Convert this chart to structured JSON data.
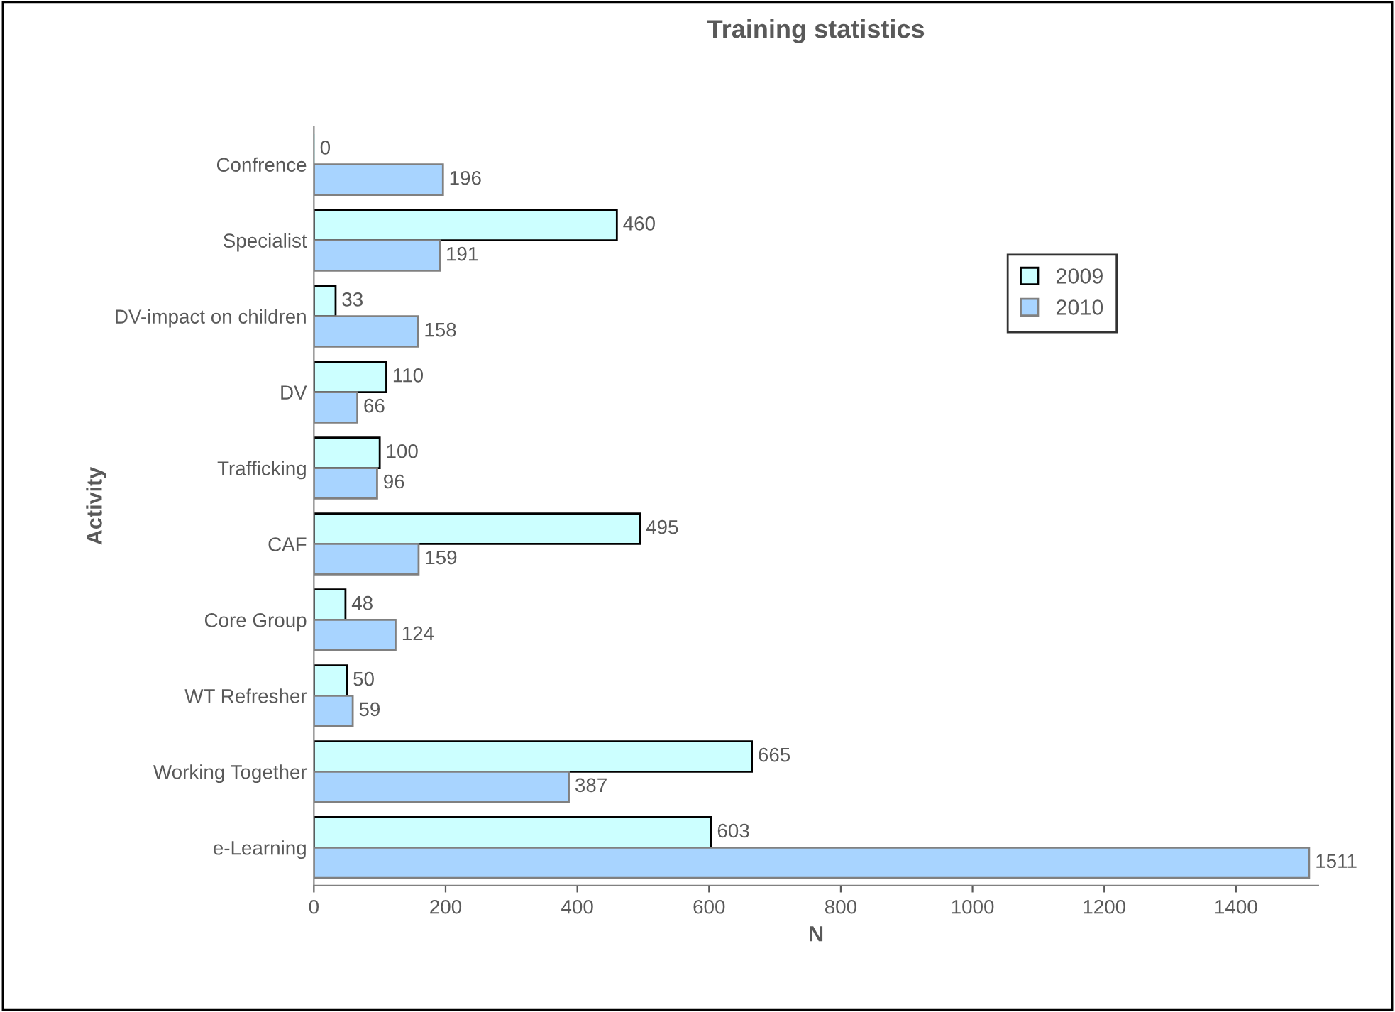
{
  "chart_data": {
    "type": "bar",
    "orientation": "horizontal",
    "title": "Training statistics",
    "xlabel": "N",
    "ylabel": "Activity",
    "categories": [
      "Confrence",
      "Specialist",
      "DV-impact on children",
      "DV",
      "Trafficking",
      "CAF",
      "Core Group",
      "WT Refresher",
      "Working Together",
      "e-Learning"
    ],
    "series": [
      {
        "name": "2009",
        "color": "#ccffff",
        "values": [
          0,
          460,
          33,
          110,
          100,
          495,
          48,
          50,
          665,
          603
        ]
      },
      {
        "name": "2010",
        "color": "#a8d4ff",
        "values": [
          196,
          191,
          158,
          66,
          96,
          159,
          124,
          59,
          387,
          1511
        ]
      }
    ],
    "xlim": [
      0,
      1525
    ],
    "xticks": [
      0,
      200,
      400,
      600,
      800,
      1000,
      1200,
      1400
    ],
    "data_labels": true,
    "grid": false,
    "legend": "right"
  }
}
